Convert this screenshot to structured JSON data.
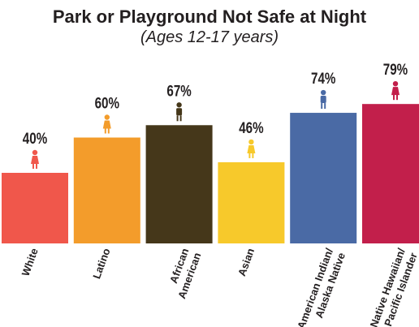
{
  "chart_data": {
    "type": "bar",
    "title": "Park or Playground Not Safe at Night",
    "subtitle": "(Ages 12-17 years)",
    "categories": [
      [
        "White"
      ],
      [
        "Latino"
      ],
      [
        "African",
        "American"
      ],
      [
        "Asian"
      ],
      [
        "American Indian/",
        "Alaska Native"
      ],
      [
        "Native Hawaiian/",
        "Pacific Islander"
      ]
    ],
    "values": [
      40,
      60,
      67,
      46,
      74,
      79
    ],
    "value_labels": [
      "40%",
      "60%",
      "67%",
      "46%",
      "74%",
      "79%"
    ],
    "colors": [
      "#f0574b",
      "#f39c2b",
      "#45371a",
      "#f7c92b",
      "#4a6aa5",
      "#c21f4b"
    ],
    "ylim": [
      0,
      100
    ]
  }
}
